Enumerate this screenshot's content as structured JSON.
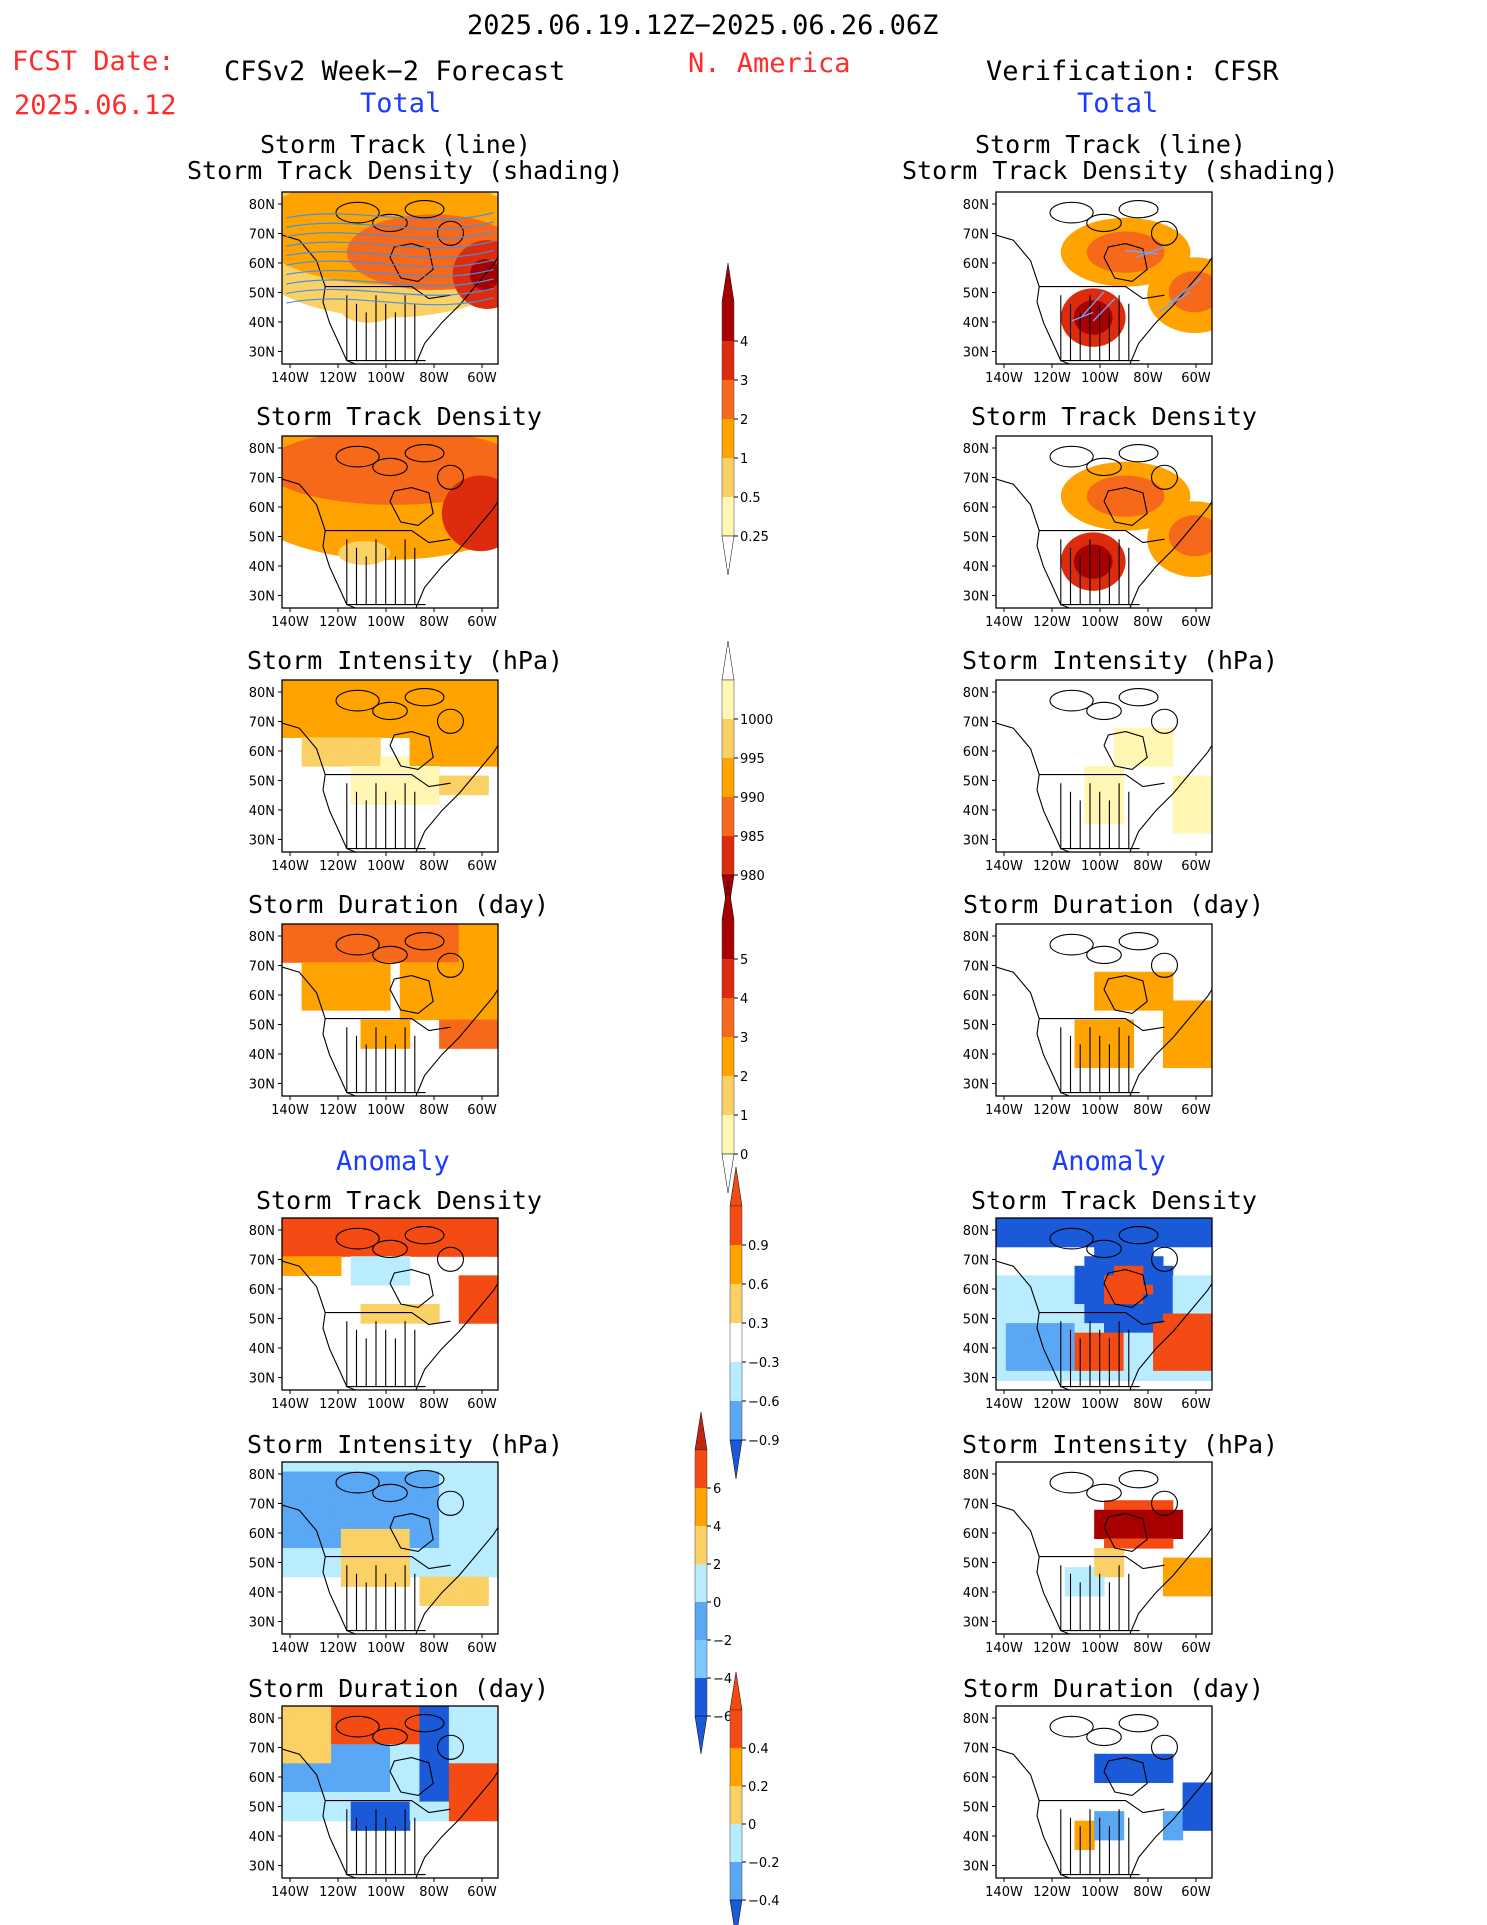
{
  "header": {
    "period": "2025.06.19.12Z−2025.06.26.06Z",
    "fcst_label": "FCST Date:",
    "fcst_date": "2025.06.12",
    "forecast_title": "CFSv2 Week−2 Forecast",
    "region": "N. America",
    "verification_title": "Verification: CFSR",
    "total_label_left": "Total",
    "total_label_right": "Total",
    "anomaly_label_left": "Anomaly",
    "anomaly_label_right": "Anomaly"
  },
  "panel_titles": {
    "track_line": "Storm Track (line)",
    "track_density_shading": "Storm Track Density (shading)",
    "track_density": "Storm Track Density",
    "intensity": "Storm Intensity (hPa)",
    "duration": "Storm Duration (day)"
  },
  "axes": {
    "lat_labels": [
      "80N",
      "70N",
      "60N",
      "50N",
      "40N",
      "30N"
    ],
    "lon_labels": [
      "140W",
      "120W",
      "100W",
      "80W",
      "60W"
    ]
  },
  "colorbars": [
    {
      "id": "track_density_total",
      "labels": [
        "4",
        "3",
        "2",
        "1",
        "0.5",
        "0.25"
      ]
    },
    {
      "id": "intensity_total",
      "labels": [
        "1000",
        "995",
        "990",
        "985",
        "980"
      ]
    },
    {
      "id": "duration_total",
      "labels": [
        "5",
        "4",
        "3",
        "2",
        "1",
        "0"
      ]
    },
    {
      "id": "track_density_anom",
      "labels": [
        "0.9",
        "0.6",
        "0.3",
        "−0.3",
        "−0.6",
        "−0.9"
      ]
    },
    {
      "id": "intensity_anom",
      "labels": [
        "6",
        "4",
        "2",
        "0",
        "−2",
        "−4",
        "−6"
      ]
    },
    {
      "id": "duration_anom",
      "labels": [
        "0.4",
        "0.2",
        "0",
        "−0.2",
        "−0.4"
      ]
    }
  ],
  "colors": {
    "warm": [
      "#fff7b3",
      "#fbd064",
      "#ffa300",
      "#f7691a",
      "#dd2c0d",
      "#a80000"
    ],
    "cool": [
      "#b9ecff",
      "#7cc8ff",
      "#3b8ff2",
      "#1a5ad8"
    ],
    "anom_pos": [
      "#fbd064",
      "#ffa300",
      "#f44a13"
    ],
    "anom_neg": [
      "#b9ecff",
      "#5aa8f5",
      "#1a5ad8"
    ],
    "title_red": "#ff2a2a",
    "title_blue": "#1a3cff"
  }
}
